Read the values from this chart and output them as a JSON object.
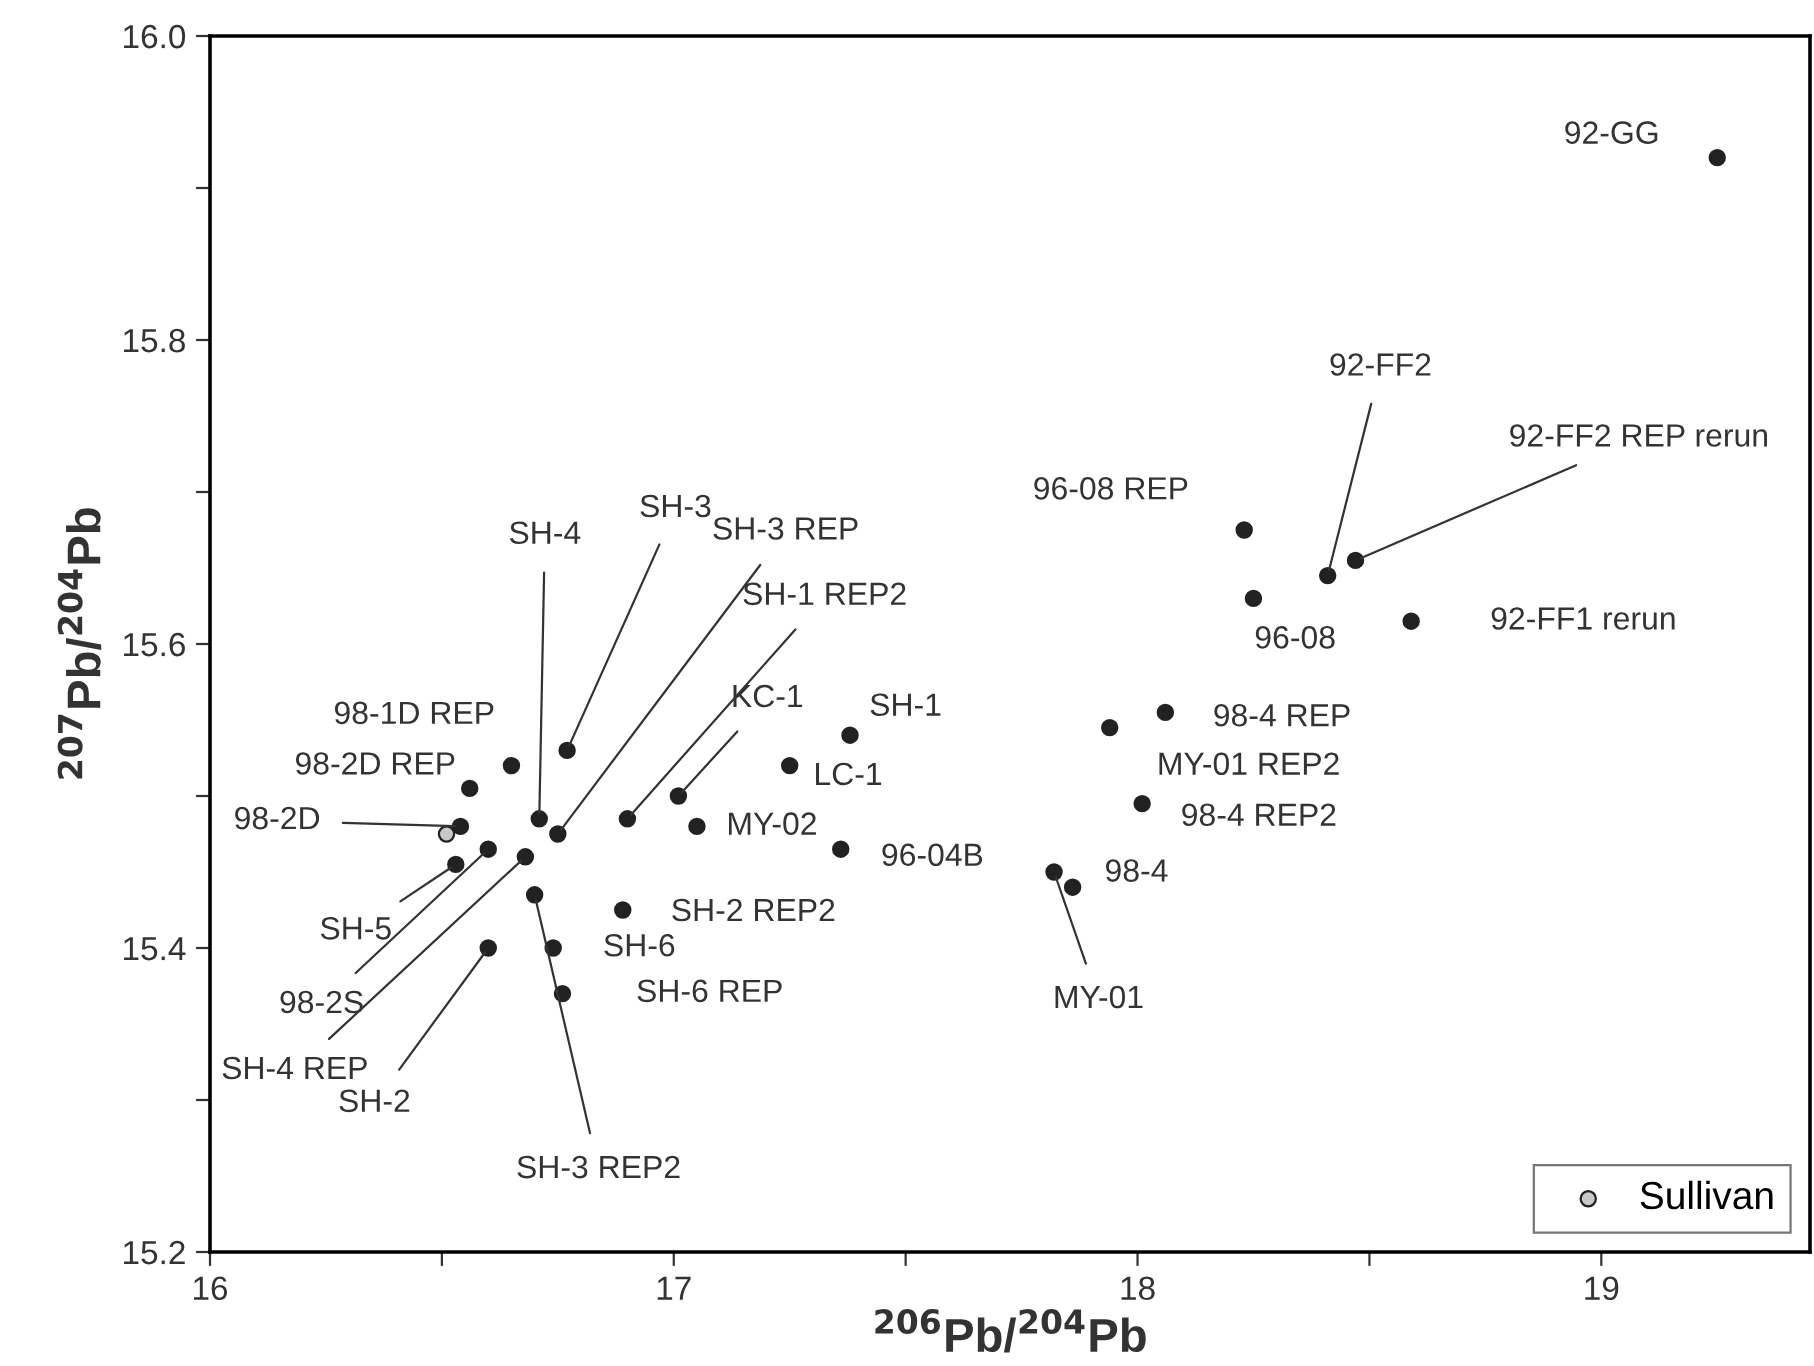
{
  "chart_data": {
    "type": "scatter",
    "xlabel": "$^{206}$Pb/$^{204}$Pb",
    "ylabel": "$^{207}$Pb/$^{204}$Pb",
    "xlim": [
      16,
      19.45
    ],
    "ylim": [
      15.2,
      16.0
    ],
    "xticks": [
      16,
      {
        "value": 16.5,
        "label": null
      },
      17,
      {
        "value": 17.5,
        "label": null
      },
      18,
      {
        "value": 18.5,
        "label": null
      },
      19
    ],
    "yticks": [
      15.2,
      {
        "value": 15.3,
        "label": null
      },
      15.4,
      {
        "value": 15.5,
        "label": null
      },
      15.6,
      {
        "value": 15.7,
        "label": null
      },
      15.8,
      {
        "value": 15.9,
        "label": null
      },
      {
        "value": 16.0,
        "label": "16.0"
      }
    ],
    "marker": "circle",
    "legend": "bottom right",
    "grid": false,
    "series": [
      {
        "color": "#222222",
        "x": [
          19.25,
          18.23,
          18.25,
          18.41,
          18.47,
          18.59,
          18.06,
          17.94,
          18.01,
          17.82,
          17.86,
          17.36,
          17.38,
          17.25,
          17.01,
          17.05,
          16.9,
          16.89,
          16.74,
          16.76,
          16.77,
          16.75,
          16.71,
          16.7,
          16.6,
          16.68,
          16.6,
          16.53,
          16.54,
          16.56,
          16.65
        ],
        "values": [
          15.92,
          15.675,
          15.63,
          15.645,
          15.655,
          15.615,
          15.555,
          15.545,
          15.495,
          15.45,
          15.44,
          15.465,
          15.54,
          15.52,
          15.5,
          15.48,
          15.485,
          15.425,
          15.4,
          15.37,
          15.53,
          15.475,
          15.485,
          15.435,
          15.4,
          15.46,
          15.465,
          15.455,
          15.48,
          15.505,
          15.52
        ]
      },
      {
        "name": "Sullivan",
        "color": "#c8c8c8",
        "x": [
          16.51
        ],
        "values": [
          15.475
        ]
      }
    ],
    "annotations": [
      {
        "text": "92-GG",
        "x": 19.25,
        "y": 15.92
      },
      {
        "text": "96-08 REP",
        "x": 18.23,
        "y": 15.675
      },
      {
        "text": "96-08",
        "x": 18.25,
        "y": 15.63
      },
      {
        "text": "92-FF2",
        "x": 18.41,
        "y": 15.645
      },
      {
        "text": "92-FF2 REP rerun",
        "x": 18.47,
        "y": 15.655
      },
      {
        "text": "92-FF1 rerun",
        "x": 18.59,
        "y": 15.615
      },
      {
        "text": "98-4 REP",
        "x": 18.06,
        "y": 15.555
      },
      {
        "text": "MY-01 REP2",
        "x": 17.94,
        "y": 15.545
      },
      {
        "text": "98-4 REP2",
        "x": 18.01,
        "y": 15.495
      },
      {
        "text": "MY-01",
        "x": 17.82,
        "y": 15.45
      },
      {
        "text": "98-4",
        "x": 17.86,
        "y": 15.44
      },
      {
        "text": "96-04B",
        "x": 17.36,
        "y": 15.465
      },
      {
        "text": "SH-1",
        "x": 17.38,
        "y": 15.54
      },
      {
        "text": "LC-1",
        "x": 17.25,
        "y": 15.52
      },
      {
        "text": "KC-1",
        "x": 17.01,
        "y": 15.5
      },
      {
        "text": "MY-02",
        "x": 17.05,
        "y": 15.48
      },
      {
        "text": "SH-1 REP2",
        "x": 16.9,
        "y": 15.485
      },
      {
        "text": "SH-2 REP2",
        "x": 16.89,
        "y": 15.425
      },
      {
        "text": "SH-6",
        "x": 16.74,
        "y": 15.4
      },
      {
        "text": "SH-6 REP",
        "x": 16.76,
        "y": 15.37
      },
      {
        "text": "SH-3",
        "x": 16.77,
        "y": 15.53
      },
      {
        "text": "SH-3 REP",
        "x": 16.75,
        "y": 15.475
      },
      {
        "text": "SH-4",
        "x": 16.71,
        "y": 15.485
      },
      {
        "text": "SH-3 REP2",
        "x": 16.7,
        "y": 15.435
      },
      {
        "text": "SH-2",
        "x": 16.6,
        "y": 15.4
      },
      {
        "text": "SH-4 REP",
        "x": 16.68,
        "y": 15.46
      },
      {
        "text": "98-2S",
        "x": 16.6,
        "y": 15.465
      },
      {
        "text": "SH-5",
        "x": 16.53,
        "y": 15.455
      },
      {
        "text": "98-2D",
        "x": 16.54,
        "y": 15.48
      },
      {
        "text": "98-2D REP",
        "x": 16.56,
        "y": 15.505
      },
      {
        "text": "98-1D REP",
        "x": 16.65,
        "y": 15.52
      }
    ]
  }
}
